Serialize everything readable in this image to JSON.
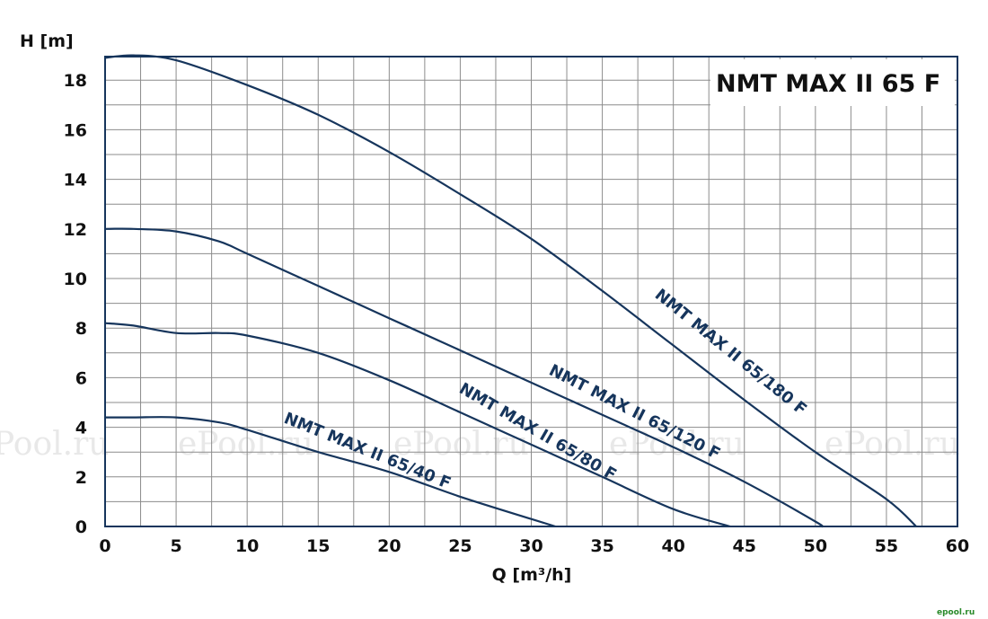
{
  "watermark": {
    "texts": [
      "Pool.ru",
      "ePool.ru",
      "ePool.ru",
      "ePool.ru",
      "ePool.ru"
    ],
    "corner": "epool.ru"
  },
  "chart_data": {
    "type": "line",
    "title": "NMT MAX II 65 F",
    "xlabel": "Q [m³/h]",
    "ylabel": "H [m]",
    "xlim": [
      0,
      60
    ],
    "ylim": [
      0,
      19
    ],
    "xticks": [
      0,
      5,
      10,
      15,
      20,
      25,
      30,
      35,
      40,
      45,
      50,
      55,
      60
    ],
    "yticks": [
      0,
      2,
      4,
      6,
      8,
      10,
      12,
      14,
      16,
      18
    ],
    "grid": true,
    "line_color": "#16355c",
    "series": [
      {
        "name": "NMT MAX II 65/180 F",
        "x": [
          0,
          2,
          5,
          10,
          15,
          20,
          25,
          30,
          35,
          40,
          45,
          50,
          55,
          57.1
        ],
        "y": [
          18.9,
          19.0,
          18.8,
          17.8,
          16.6,
          15.1,
          13.4,
          11.6,
          9.5,
          7.3,
          5.1,
          3.0,
          1.1,
          0
        ]
      },
      {
        "name": "NMT MAX II 65/120 F",
        "x": [
          0,
          2,
          5,
          8,
          10,
          15,
          20,
          25,
          30,
          35,
          40,
          45,
          50,
          50.4
        ],
        "y": [
          12.0,
          12.0,
          11.9,
          11.5,
          11.0,
          9.7,
          8.4,
          7.1,
          5.8,
          4.5,
          3.2,
          1.8,
          0.2,
          0
        ]
      },
      {
        "name": "NMT MAX II 65/80 F",
        "x": [
          0,
          2,
          5,
          8,
          10,
          15,
          20,
          25,
          30,
          35,
          40,
          44.0
        ],
        "y": [
          8.2,
          8.1,
          7.8,
          7.8,
          7.7,
          7.0,
          5.9,
          4.6,
          3.3,
          2.0,
          0.7,
          0
        ]
      },
      {
        "name": "NMT MAX II 65/40 F",
        "x": [
          0,
          2,
          5,
          8,
          10,
          15,
          20,
          25,
          30,
          31.7
        ],
        "y": [
          4.4,
          4.4,
          4.4,
          4.2,
          3.9,
          3.0,
          2.2,
          1.2,
          0.3,
          0
        ]
      }
    ],
    "curve_labels": [
      "NMT MAX II 65/180 F",
      "NMT MAX II 65/120 F",
      "NMT MAX II 65/80 F",
      "NMT MAX II 65/40 F"
    ]
  }
}
